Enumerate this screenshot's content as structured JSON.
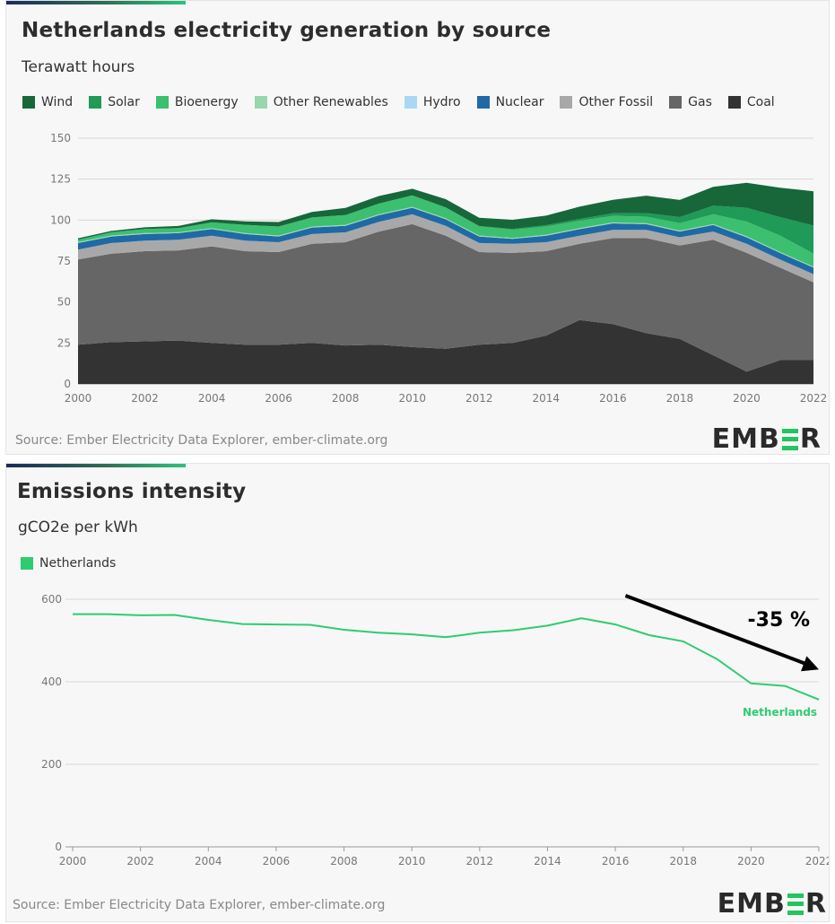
{
  "top_chart": {
    "title": "Netherlands electricity generation by source",
    "subtitle": "Terawatt hours",
    "source": "Source: Ember Electricity Data Explorer, ember-climate.org",
    "logo": {
      "left": "EMB",
      "right": "R"
    },
    "legend": [
      {
        "label": "Wind",
        "color": "#17673b"
      },
      {
        "label": "Solar",
        "color": "#1f9a57"
      },
      {
        "label": "Bioenergy",
        "color": "#3cbf6e"
      },
      {
        "label": "Other Renewables",
        "color": "#98d6ad"
      },
      {
        "label": "Hydro",
        "color": "#a9d8f5"
      },
      {
        "label": "Nuclear",
        "color": "#1f6aa5"
      },
      {
        "label": "Other Fossil",
        "color": "#a8a8a8"
      },
      {
        "label": "Gas",
        "color": "#666666"
      },
      {
        "label": "Coal",
        "color": "#333333"
      }
    ]
  },
  "bottom_chart": {
    "title": "Emissions intensity",
    "subtitle": "gCO2e per kWh",
    "source": "Source: Ember Electricity Data Explorer, ember-climate.org",
    "logo": {
      "left": "EMB",
      "right": "R"
    },
    "legend": [
      {
        "label": "Netherlands",
        "color": "#2ecc71"
      }
    ],
    "annotation": {
      "text": "-35 %",
      "series_label": "Netherlands"
    }
  },
  "chart_data": [
    {
      "type": "area",
      "title": "Netherlands electricity generation by source",
      "ylabel": "Terawatt hours",
      "ylim": [
        0,
        150
      ],
      "yticks": [
        0,
        25,
        50,
        75,
        100,
        125,
        150
      ],
      "xticks": [
        2000,
        2002,
        2004,
        2006,
        2008,
        2010,
        2012,
        2014,
        2016,
        2018,
        2020,
        2022
      ],
      "stacked": true,
      "grid": true,
      "legend_position": "top",
      "x": [
        2000,
        2001,
        2002,
        2003,
        2004,
        2005,
        2006,
        2007,
        2008,
        2009,
        2010,
        2011,
        2012,
        2013,
        2014,
        2015,
        2016,
        2017,
        2018,
        2019,
        2020,
        2021,
        2022
      ],
      "series": [
        {
          "name": "Coal",
          "values": [
            24,
            25.5,
            26,
            26.5,
            25,
            24,
            24,
            25,
            23.5,
            24,
            22.5,
            21.5,
            24,
            25,
            29.5,
            39,
            36.5,
            31,
            27.5,
            17.5,
            7.5,
            14.5,
            14.5
          ]
        },
        {
          "name": "Gas",
          "values": [
            52,
            54,
            55,
            55,
            59,
            57,
            56.5,
            60.5,
            63,
            69,
            75,
            69,
            56.5,
            55,
            51.5,
            46.5,
            52.5,
            58,
            57,
            70.5,
            72.5,
            56.5,
            47.5
          ]
        },
        {
          "name": "Other Fossil",
          "values": [
            6,
            6.5,
            6.5,
            6.5,
            6.5,
            6.5,
            6,
            6,
            6,
            6,
            6,
            6,
            5.5,
            5.5,
            5.5,
            5,
            5,
            5,
            5,
            5,
            5.5,
            5,
            5
          ]
        },
        {
          "name": "Nuclear",
          "values": [
            4,
            4,
            4,
            4,
            4,
            4,
            3.5,
            4,
            4,
            4,
            4,
            4,
            4,
            3,
            4,
            4,
            4,
            3.5,
            3.5,
            4,
            4,
            4,
            4
          ]
        },
        {
          "name": "Hydro",
          "values": [
            0.1,
            0.1,
            0.1,
            0.1,
            0.1,
            0.1,
            0.1,
            0.1,
            0.1,
            0.1,
            0.1,
            0.1,
            0.1,
            0.1,
            0.1,
            0.1,
            0.1,
            0.1,
            0.1,
            0.1,
            0.1,
            0.1,
            0.1
          ]
        },
        {
          "name": "Other Renewables",
          "values": [
            0.5,
            0.5,
            0.5,
            0.5,
            0.5,
            0.5,
            0.5,
            0.5,
            0.5,
            0.5,
            0.5,
            0.5,
            0.5,
            0.5,
            0.5,
            0.5,
            0.5,
            0.5,
            0.5,
            0.5,
            0.5,
            0.5,
            0.5
          ]
        },
        {
          "name": "Bioenergy",
          "values": [
            1.5,
            2,
            2.5,
            2.5,
            3.5,
            5,
            5.5,
            5.5,
            6,
            6.5,
            7,
            6.5,
            5.5,
            5,
            5,
            4.5,
            4,
            4,
            4.5,
            6,
            9,
            10,
            8
          ]
        },
        {
          "name": "Solar",
          "values": [
            0,
            0,
            0,
            0,
            0,
            0,
            0,
            0,
            0,
            0,
            0,
            0.1,
            0.3,
            0.5,
            0.8,
            1.1,
            1.6,
            2.2,
            3.7,
            5.2,
            8.4,
            11.2,
            17
          ]
        },
        {
          "name": "Wind",
          "values": [
            0.8,
            0.8,
            1,
            1.3,
            1.9,
            2.1,
            2.7,
            3.4,
            4.3,
            4.6,
            4,
            5.1,
            5,
            5.6,
            5.8,
            7.5,
            8.2,
            10.6,
            10.5,
            11.5,
            15.3,
            18,
            21
          ]
        }
      ]
    },
    {
      "type": "line",
      "title": "Emissions intensity",
      "ylabel": "gCO2e per kWh",
      "ylim": [
        0,
        600
      ],
      "yticks": [
        0,
        200,
        400,
        600
      ],
      "xticks": [
        2000,
        2002,
        2004,
        2006,
        2008,
        2010,
        2012,
        2014,
        2016,
        2018,
        2020,
        2022
      ],
      "grid": true,
      "legend_position": "top-left",
      "x": [
        2000,
        2001,
        2002,
        2003,
        2004,
        2005,
        2006,
        2007,
        2008,
        2009,
        2010,
        2011,
        2012,
        2013,
        2014,
        2015,
        2016,
        2017,
        2018,
        2019,
        2020,
        2021,
        2022
      ],
      "series": [
        {
          "name": "Netherlands",
          "values": [
            564,
            564,
            561,
            562,
            550,
            540,
            539,
            538,
            526,
            519,
            515,
            508,
            519,
            525,
            536,
            554,
            539,
            513,
            498,
            455,
            396,
            390,
            357
          ]
        }
      ],
      "annotation": {
        "text": "-35 %",
        "arrow_from": [
          2016.3,
          600
        ],
        "arrow_to": [
          2022,
          430
        ]
      }
    }
  ]
}
